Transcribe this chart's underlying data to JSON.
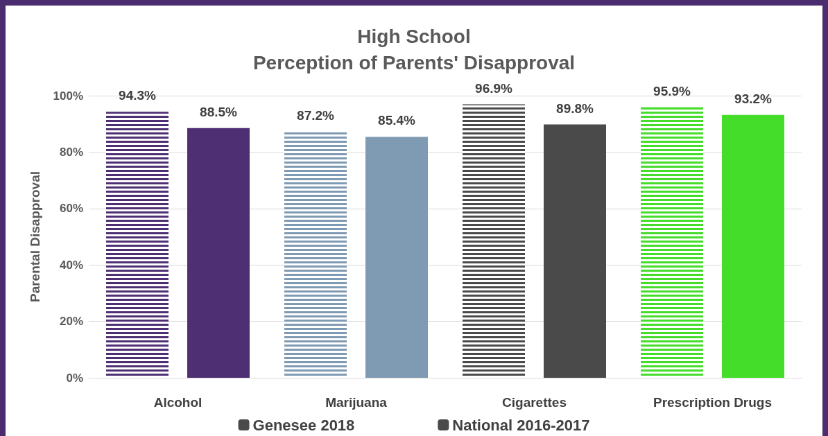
{
  "chart_data": {
    "type": "bar",
    "title": "High School\nPerception of Parents' Disapproval",
    "ylabel": "Parental Disapproval",
    "categories": [
      "Alcohol",
      "Marijuana",
      "Cigarettes",
      "Prescription Drugs"
    ],
    "series": [
      {
        "name": "Genesee 2018",
        "colors": [
          "#4f2f74",
          "#7f9ab3",
          "#4a4a4a",
          "#44dd2a"
        ],
        "values": [
          94.3,
          87.2,
          96.9,
          95.9
        ],
        "value_labels": [
          "94.3%",
          "87.2%",
          "96.9%",
          "95.9%"
        ]
      },
      {
        "name": "National 2016-2017",
        "colors": [
          "#4f2f74",
          "#7f9ab3",
          "#4a4a4a",
          "#44dd2a"
        ],
        "values": [
          88.5,
          85.4,
          89.8,
          93.2
        ],
        "value_labels": [
          "88.5%",
          "85.4%",
          "89.8%",
          "93.2%"
        ]
      }
    ],
    "ylim": [
      0,
      100
    ],
    "yticks": [
      {
        "value": 0,
        "label": "0%"
      },
      {
        "value": 20,
        "label": "20%"
      },
      {
        "value": 40,
        "label": "40%"
      },
      {
        "value": 60,
        "label": "60%"
      },
      {
        "value": 80,
        "label": "80%"
      },
      {
        "value": 100,
        "label": "100%"
      }
    ],
    "grid": "y",
    "legend": "bottom"
  }
}
